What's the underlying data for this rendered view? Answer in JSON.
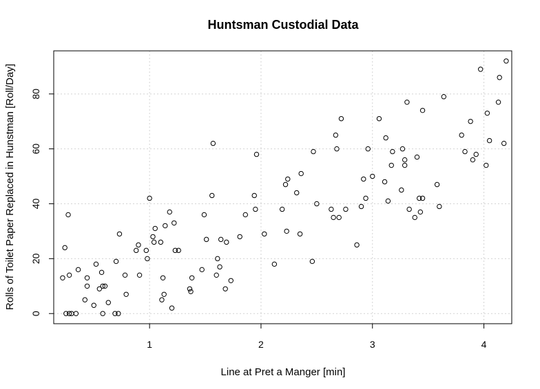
{
  "chart_data": {
    "type": "scatter",
    "title": "Huntsman Custodial Data",
    "xlabel": "Line at Pret a Manger [min]",
    "ylabel": "Rolls of Toilet Paper Replaced in Hunstman [Roll/Day]",
    "xlim": [
      0.14,
      4.25
    ],
    "ylim": [
      -3.7,
      95.7
    ],
    "xticks": [
      1,
      2,
      3,
      4
    ],
    "yticks": [
      0,
      20,
      40,
      60,
      80
    ],
    "grid": true,
    "marker": "open-circle",
    "points": [
      [
        0.22,
        13
      ],
      [
        0.24,
        24
      ],
      [
        0.25,
        0
      ],
      [
        0.27,
        36
      ],
      [
        0.28,
        0
      ],
      [
        0.28,
        14
      ],
      [
        0.3,
        0
      ],
      [
        0.34,
        0
      ],
      [
        0.36,
        16
      ],
      [
        0.42,
        5
      ],
      [
        0.44,
        10
      ],
      [
        0.44,
        13
      ],
      [
        0.5,
        3
      ],
      [
        0.52,
        18
      ],
      [
        0.55,
        9
      ],
      [
        0.57,
        15
      ],
      [
        0.58,
        0
      ],
      [
        0.58,
        10
      ],
      [
        0.6,
        10
      ],
      [
        0.63,
        4
      ],
      [
        0.69,
        0
      ],
      [
        0.7,
        19
      ],
      [
        0.72,
        0
      ],
      [
        0.73,
        29
      ],
      [
        0.78,
        14
      ],
      [
        0.79,
        7
      ],
      [
        0.88,
        23
      ],
      [
        0.9,
        25
      ],
      [
        0.91,
        14
      ],
      [
        0.97,
        23
      ],
      [
        0.98,
        20
      ],
      [
        1.0,
        42
      ],
      [
        1.03,
        28
      ],
      [
        1.04,
        26
      ],
      [
        1.05,
        31
      ],
      [
        1.1,
        26
      ],
      [
        1.11,
        5
      ],
      [
        1.12,
        13
      ],
      [
        1.13,
        7
      ],
      [
        1.14,
        32
      ],
      [
        1.18,
        37
      ],
      [
        1.2,
        2
      ],
      [
        1.22,
        33
      ],
      [
        1.23,
        23
      ],
      [
        1.26,
        23
      ],
      [
        1.36,
        9
      ],
      [
        1.37,
        8
      ],
      [
        1.38,
        13
      ],
      [
        1.47,
        16
      ],
      [
        1.49,
        36
      ],
      [
        1.51,
        27
      ],
      [
        1.56,
        43
      ],
      [
        1.57,
        62
      ],
      [
        1.6,
        14
      ],
      [
        1.61,
        20
      ],
      [
        1.63,
        17
      ],
      [
        1.64,
        27
      ],
      [
        1.68,
        9
      ],
      [
        1.69,
        26
      ],
      [
        1.73,
        12
      ],
      [
        1.81,
        28
      ],
      [
        1.86,
        36
      ],
      [
        1.94,
        43
      ],
      [
        1.95,
        38
      ],
      [
        1.96,
        58
      ],
      [
        2.03,
        29
      ],
      [
        2.12,
        18
      ],
      [
        2.19,
        38
      ],
      [
        2.22,
        47
      ],
      [
        2.23,
        30
      ],
      [
        2.24,
        49
      ],
      [
        2.32,
        44
      ],
      [
        2.35,
        29
      ],
      [
        2.36,
        51
      ],
      [
        2.46,
        19
      ],
      [
        2.47,
        59
      ],
      [
        2.5,
        40
      ],
      [
        2.63,
        38
      ],
      [
        2.65,
        35
      ],
      [
        2.67,
        65
      ],
      [
        2.68,
        60
      ],
      [
        2.7,
        35
      ],
      [
        2.72,
        71
      ],
      [
        2.76,
        38
      ],
      [
        2.86,
        25
      ],
      [
        2.9,
        39
      ],
      [
        2.92,
        49
      ],
      [
        2.94,
        42
      ],
      [
        2.96,
        60
      ],
      [
        3.0,
        50
      ],
      [
        3.06,
        71
      ],
      [
        3.11,
        48
      ],
      [
        3.12,
        64
      ],
      [
        3.14,
        41
      ],
      [
        3.17,
        54
      ],
      [
        3.18,
        59
      ],
      [
        3.26,
        45
      ],
      [
        3.27,
        60
      ],
      [
        3.29,
        56
      ],
      [
        3.29,
        54
      ],
      [
        3.31,
        77
      ],
      [
        3.33,
        38
      ],
      [
        3.38,
        35
      ],
      [
        3.4,
        57
      ],
      [
        3.42,
        42
      ],
      [
        3.43,
        37
      ],
      [
        3.45,
        42
      ],
      [
        3.45,
        74
      ],
      [
        3.58,
        47
      ],
      [
        3.6,
        39
      ],
      [
        3.64,
        79
      ],
      [
        3.8,
        65
      ],
      [
        3.83,
        59
      ],
      [
        3.88,
        70
      ],
      [
        3.9,
        56
      ],
      [
        3.93,
        58
      ],
      [
        3.97,
        89
      ],
      [
        4.02,
        54
      ],
      [
        4.03,
        73
      ],
      [
        4.05,
        63
      ],
      [
        4.13,
        77
      ],
      [
        4.14,
        86
      ],
      [
        4.18,
        62
      ],
      [
        4.2,
        92
      ]
    ]
  }
}
